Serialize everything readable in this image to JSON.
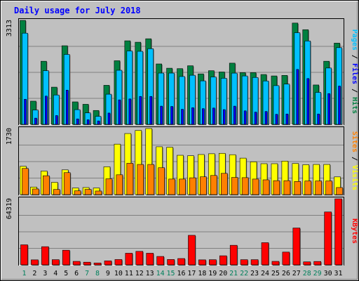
{
  "chart_data": {
    "type": "bar",
    "title": "Daily usage for July 2018",
    "categories": [
      "1",
      "2",
      "3",
      "4",
      "5",
      "6",
      "7",
      "8",
      "9",
      "10",
      "11",
      "12",
      "13",
      "14",
      "15",
      "16",
      "17",
      "18",
      "19",
      "20",
      "21",
      "22",
      "23",
      "24",
      "25",
      "26",
      "27",
      "28",
      "29",
      "30",
      "31"
    ],
    "weekend_days": [
      1,
      7,
      8,
      14,
      15,
      21,
      22,
      28,
      29
    ],
    "colors": {
      "hits": "#008040",
      "files": "#00c0ff",
      "pages": "#0000ff",
      "visits": "#ffff00",
      "sites": "#ff8000",
      "kbytes": "#ff0000",
      "weekday_label": "#000000",
      "weekend_label": "#00805c",
      "title": "#0000ff",
      "panel_bg": "#c0c0c0"
    },
    "panels": [
      {
        "name": "hits-files-pages",
        "max_label": "3313",
        "ylim": [
          0,
          3313
        ],
        "legend": [
          {
            "label": "Pages",
            "color": "#00c0ff"
          },
          {
            "label": "Files",
            "color": "#0000ff"
          },
          {
            "label": "Hits",
            "color": "#008040"
          }
        ],
        "series": [
          {
            "name": "Hits",
            "values": [
              3313,
              739,
              2011,
              1185,
              2505,
              716,
              639,
              442,
              1244,
              2027,
              2662,
              2617,
              2727,
              1925,
              1789,
              1775,
              1867,
              1608,
              1710,
              1669,
              1950,
              1648,
              1648,
              1588,
              1543,
              1560,
              3227,
              3016,
              1255,
              2011,
              2588
            ]
          },
          {
            "name": "Files",
            "values": [
              2905,
              457,
              1710,
              935,
              2228,
              468,
              365,
              255,
              960,
              1723,
              2338,
              2327,
              2410,
              1633,
              1633,
              1524,
              1564,
              1385,
              1510,
              1468,
              1632,
              1542,
              1494,
              1382,
              1234,
              1283,
              2920,
              2657,
              1018,
              1795,
              2444
            ]
          },
          {
            "name": "Pages",
            "values": [
              800,
              198,
              900,
              280,
              1090,
              173,
              146,
              109,
              360,
              780,
              810,
              890,
              890,
              580,
              570,
              480,
              530,
              500,
              520,
              470,
              580,
              430,
              390,
              410,
              320,
              330,
              1750,
              1460,
              330,
              980,
              1220
            ]
          }
        ]
      },
      {
        "name": "visits-sites",
        "max_label": "1730",
        "ylim": [
          0,
          1730
        ],
        "legend": [
          {
            "label": "Sites",
            "color": "#ff8000"
          },
          {
            "label": "Visits",
            "color": "#ffff00"
          }
        ],
        "series": [
          {
            "name": "Visits",
            "values": [
              741,
              198,
              616,
              321,
              648,
              173,
              185,
              173,
              728,
              1322,
              1600,
              1680,
              1730,
              1253,
              1240,
              1030,
              1018,
              1050,
              1070,
              1081,
              1045,
              955,
              859,
              810,
              810,
              877,
              815,
              783,
              790,
              790,
              464
            ]
          },
          {
            "name": "Sites",
            "values": [
              685,
              148,
              494,
              134,
              575,
              99,
              136,
              93,
              414,
              519,
              821,
              790,
              790,
              704,
              407,
              407,
              440,
              466,
              501,
              556,
              449,
              444,
              407,
              387,
              365,
              365,
              344,
              357,
              357,
              357,
              185
            ]
          }
        ]
      },
      {
        "name": "kbytes",
        "max_label": "64319",
        "ylim": [
          0,
          64319
        ],
        "legend": [
          {
            "label": "KBytes",
            "color": "#ff0000"
          }
        ],
        "series": [
          {
            "name": "KBytes",
            "values": [
              19522,
              4878,
              17683,
              5060,
              14248,
              3402,
              2600,
              1849,
              3872,
              5180,
              11320,
              13146,
              11320,
              8186,
              5220,
              6150,
              28760,
              4878,
              5020,
              8840,
              19050,
              5040,
              5040,
              21600,
              3402,
              12426,
              35900,
              2926,
              3300,
              51500,
              64319
            ]
          }
        ]
      }
    ]
  }
}
